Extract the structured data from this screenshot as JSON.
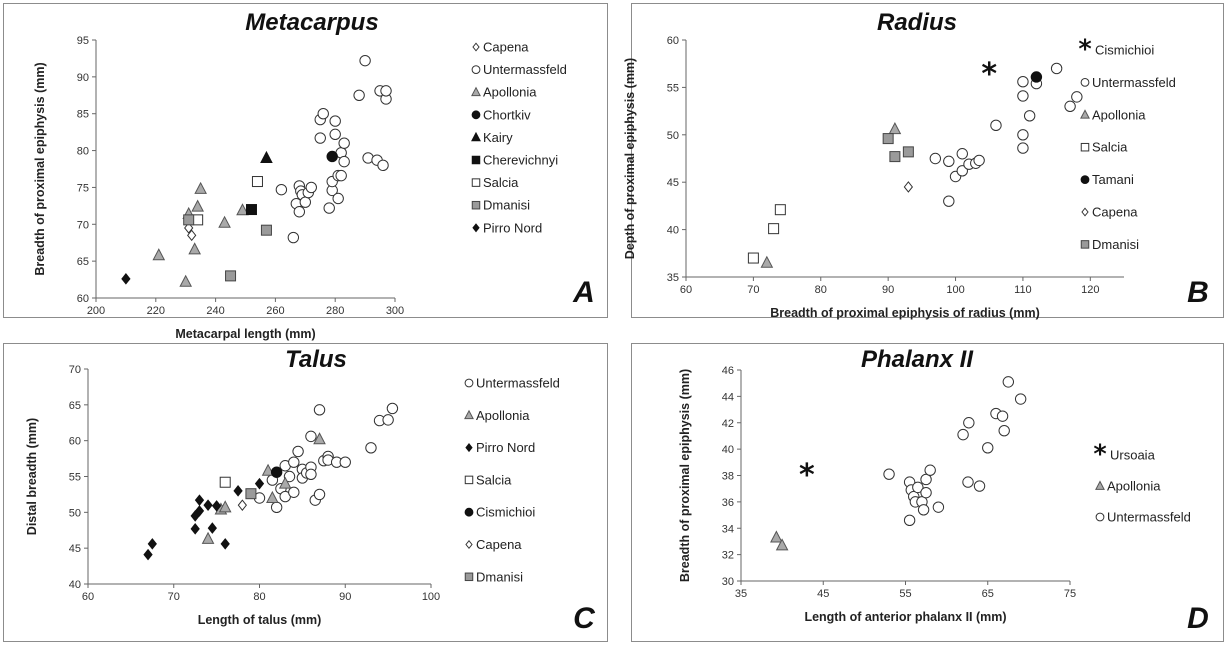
{
  "chart_data": [
    {
      "type": "scatter",
      "title": "Metacarpus",
      "panel_label": "A",
      "xlabel": "Metacarpal length (mm)",
      "ylabel": "Breadth of proximal epiphysis (mm)",
      "xlim": [
        200,
        300
      ],
      "ylim": [
        60,
        95
      ],
      "xticks": [
        200,
        220,
        240,
        260,
        280,
        300
      ],
      "yticks": [
        60,
        65,
        70,
        75,
        80,
        85,
        90,
        95
      ],
      "legend_position": "right",
      "series": [
        {
          "name": "Capena",
          "marker": "diamond-open",
          "points": [
            [
              231,
              69.5
            ],
            [
              232,
              68.5
            ]
          ]
        },
        {
          "name": "Untermassfeld",
          "marker": "circle-open",
          "points": [
            [
              262,
              74.7
            ],
            [
              266,
              68.2
            ],
            [
              267,
              72.8
            ],
            [
              268,
              75.2
            ],
            [
              268.5,
              74.5
            ],
            [
              269,
              74.0
            ],
            [
              268,
              71.7
            ],
            [
              270,
              73.0
            ],
            [
              271,
              74.3
            ],
            [
              272,
              75.0
            ],
            [
              275,
              81.7
            ],
            [
              275,
              84.2
            ],
            [
              276,
              85.0
            ],
            [
              278,
              72.2
            ],
            [
              279,
              74.6
            ],
            [
              279,
              75.8
            ],
            [
              280,
              84.0
            ],
            [
              280,
              82.2
            ],
            [
              281,
              76.6
            ],
            [
              281,
              73.5
            ],
            [
              282,
              79.7
            ],
            [
              282,
              76.6
            ],
            [
              283,
              81.0
            ],
            [
              283,
              78.5
            ],
            [
              288,
              87.5
            ],
            [
              290,
              92.2
            ],
            [
              291,
              79.0
            ],
            [
              294,
              78.7
            ],
            [
              295,
              88.1
            ],
            [
              296,
              78.0
            ],
            [
              297,
              87.0
            ],
            [
              297,
              88.1
            ]
          ]
        },
        {
          "name": "Apollonia",
          "marker": "triangle-open",
          "points": [
            [
              221,
              65.8
            ],
            [
              230,
              62.2
            ],
            [
              231,
              71.4
            ],
            [
              233,
              66.6
            ],
            [
              234,
              72.4
            ],
            [
              235,
              74.8
            ],
            [
              243,
              70.2
            ],
            [
              249,
              71.9
            ]
          ]
        },
        {
          "name": "Chortkiv",
          "marker": "circle-filled",
          "points": [
            [
              279,
              79.2
            ]
          ]
        },
        {
          "name": "Kairy",
          "marker": "triangle-filled",
          "points": [
            [
              257,
              79.0
            ]
          ]
        },
        {
          "name": "Cherevichnyi",
          "marker": "square-filled",
          "points": [
            [
              252,
              72.0
            ]
          ]
        },
        {
          "name": "Salcia",
          "marker": "square-open",
          "points": [
            [
              234,
              70.6
            ],
            [
              254,
              75.8
            ]
          ]
        },
        {
          "name": "Dmanisi",
          "marker": "square-gray",
          "points": [
            [
              231,
              70.6
            ],
            [
              245,
              63.0
            ],
            [
              257,
              69.2
            ]
          ]
        },
        {
          "name": "Pirro Nord",
          "marker": "diamond-filled",
          "points": [
            [
              210,
              62.6
            ]
          ]
        }
      ]
    },
    {
      "type": "scatter",
      "title": "Radius",
      "panel_label": "B",
      "xlabel": "Breadth of proximal epiphysis of radius (mm)",
      "ylabel": "Depth of proximal epiphysis (mm)",
      "xlim": [
        60,
        125
      ],
      "ylim": [
        35,
        60
      ],
      "xticks": [
        60,
        70,
        80,
        90,
        100,
        110,
        120
      ],
      "yticks": [
        35,
        40,
        45,
        50,
        55,
        60
      ],
      "legend_position": "right",
      "series": [
        {
          "name": "Cismichioi",
          "marker": "asterisk",
          "points": [
            [
              105,
              56.5
            ]
          ]
        },
        {
          "name": "Untermassfeld",
          "marker": "circle-open",
          "points": [
            [
              97,
              47.5
            ],
            [
              99,
              47.2
            ],
            [
              99,
              43.0
            ],
            [
              100,
              45.6
            ],
            [
              101,
              48.0
            ],
            [
              101,
              46.2
            ],
            [
              102,
              46.9
            ],
            [
              103,
              47.0
            ],
            [
              103.5,
              47.3
            ],
            [
              106,
              51.0
            ],
            [
              110,
              48.6
            ],
            [
              110,
              50.0
            ],
            [
              110,
              54.1
            ],
            [
              110,
              55.6
            ],
            [
              111,
              52.0
            ],
            [
              112,
              55.4
            ],
            [
              115,
              57.0
            ],
            [
              117,
              53.0
            ],
            [
              118,
              54.0
            ]
          ]
        },
        {
          "name": "Apollonia",
          "marker": "triangle-open",
          "points": [
            [
              72,
              36.5
            ],
            [
              91,
              50.6
            ]
          ]
        },
        {
          "name": "Salcia",
          "marker": "square-open",
          "points": [
            [
              70,
              37.0
            ],
            [
              73,
              40.1
            ],
            [
              74,
              42.1
            ]
          ]
        },
        {
          "name": "Tamani",
          "marker": "circle-filled",
          "points": [
            [
              112,
              56.1
            ]
          ]
        },
        {
          "name": "Capena",
          "marker": "diamond-open",
          "points": [
            [
              93,
              44.5
            ]
          ]
        },
        {
          "name": "Dmanisi",
          "marker": "square-gray",
          "points": [
            [
              90,
              49.6
            ],
            [
              91,
              47.7
            ],
            [
              93,
              48.2
            ]
          ]
        }
      ]
    },
    {
      "type": "scatter",
      "title": "Talus",
      "panel_label": "C",
      "xlabel": "Length of talus (mm)",
      "ylabel": "Distal breadth (mm)",
      "xlim": [
        60,
        100
      ],
      "ylim": [
        40,
        70
      ],
      "xticks": [
        60,
        70,
        80,
        90,
        100
      ],
      "yticks": [
        40,
        45,
        50,
        55,
        60,
        65,
        70
      ],
      "legend_position": "right",
      "series": [
        {
          "name": "Untermassfeld",
          "marker": "circle-open",
          "points": [
            [
              80,
              52.0
            ],
            [
              81.5,
              54.5
            ],
            [
              82,
              50.7
            ],
            [
              82.5,
              53.3
            ],
            [
              83,
              52.2
            ],
            [
              83,
              56.5
            ],
            [
              83.5,
              55.0
            ],
            [
              84,
              52.8
            ],
            [
              84,
              57.0
            ],
            [
              84.5,
              58.5
            ],
            [
              85,
              56.0
            ],
            [
              85,
              54.8
            ],
            [
              85.5,
              55.5
            ],
            [
              86,
              56.3
            ],
            [
              86,
              55.3
            ],
            [
              86,
              60.6
            ],
            [
              86.5,
              51.7
            ],
            [
              87,
              52.5
            ],
            [
              87,
              64.3
            ],
            [
              87.5,
              57.2
            ],
            [
              88,
              57.8
            ],
            [
              88,
              57.3
            ],
            [
              89,
              57.0
            ],
            [
              90,
              57.0
            ],
            [
              93,
              59.0
            ],
            [
              94,
              62.8
            ],
            [
              95,
              62.9
            ],
            [
              95.5,
              64.5
            ]
          ]
        },
        {
          "name": "Apollonia",
          "marker": "triangle-open",
          "points": [
            [
              74,
              46.3
            ],
            [
              75.5,
              50.4
            ],
            [
              76,
              50.7
            ],
            [
              81,
              55.8
            ],
            [
              81.5,
              52.0
            ],
            [
              83,
              54.0
            ],
            [
              87,
              60.2
            ]
          ]
        },
        {
          "name": "Pirro Nord",
          "marker": "diamond-filled",
          "points": [
            [
              67,
              44.1
            ],
            [
              67.5,
              45.6
            ],
            [
              72.5,
              47.7
            ],
            [
              72.5,
              49.5
            ],
            [
              73,
              50.2
            ],
            [
              73,
              51.7
            ],
            [
              74,
              51.0
            ],
            [
              74.5,
              47.8
            ],
            [
              75,
              50.9
            ],
            [
              76,
              45.6
            ],
            [
              77.5,
              53.0
            ],
            [
              80,
              54.0
            ]
          ]
        },
        {
          "name": "Salcia",
          "marker": "square-open",
          "points": [
            [
              76,
              54.2
            ]
          ]
        },
        {
          "name": "Cismichioi",
          "marker": "circle-filled",
          "points": [
            [
              82,
              55.6
            ]
          ]
        },
        {
          "name": "Capena",
          "marker": "diamond-open",
          "points": [
            [
              78,
              51.0
            ]
          ]
        },
        {
          "name": "Dmanisi",
          "marker": "square-gray",
          "points": [
            [
              79,
              52.6
            ]
          ]
        }
      ]
    },
    {
      "type": "scatter",
      "title": "Phalanx II",
      "panel_label": "D",
      "xlabel": "Length of anterior phalanx II (mm)",
      "ylabel": "Breadth of proximal epiphysis (mm)",
      "xlim": [
        35,
        75
      ],
      "ylim": [
        30,
        46
      ],
      "xticks": [
        35,
        45,
        55,
        65,
        75
      ],
      "yticks": [
        30,
        32,
        34,
        36,
        38,
        40,
        42,
        44,
        46
      ],
      "legend_position": "right",
      "series": [
        {
          "name": "Ursoaia",
          "marker": "asterisk",
          "points": [
            [
              43,
              38.1
            ]
          ]
        },
        {
          "name": "Apollonia",
          "marker": "triangle-open",
          "points": [
            [
              39.3,
              33.3
            ],
            [
              40,
              32.7
            ]
          ]
        },
        {
          "name": "Untermassfeld",
          "marker": "circle-open",
          "points": [
            [
              53,
              38.1
            ],
            [
              55.5,
              34.6
            ],
            [
              55.5,
              37.5
            ],
            [
              55.7,
              36.9
            ],
            [
              56,
              36.4
            ],
            [
              56.2,
              36.0
            ],
            [
              56.5,
              37.1
            ],
            [
              57,
              36.0
            ],
            [
              57.2,
              35.4
            ],
            [
              57.5,
              36.7
            ],
            [
              57.5,
              37.7
            ],
            [
              58,
              38.4
            ],
            [
              59,
              35.6
            ],
            [
              62,
              41.1
            ],
            [
              62.6,
              37.5
            ],
            [
              62.7,
              42.0
            ],
            [
              64,
              37.2
            ],
            [
              65,
              40.1
            ],
            [
              66,
              42.7
            ],
            [
              67,
              41.4
            ],
            [
              66.8,
              42.5
            ],
            [
              67.5,
              45.1
            ],
            [
              69,
              43.8
            ]
          ]
        }
      ]
    }
  ]
}
